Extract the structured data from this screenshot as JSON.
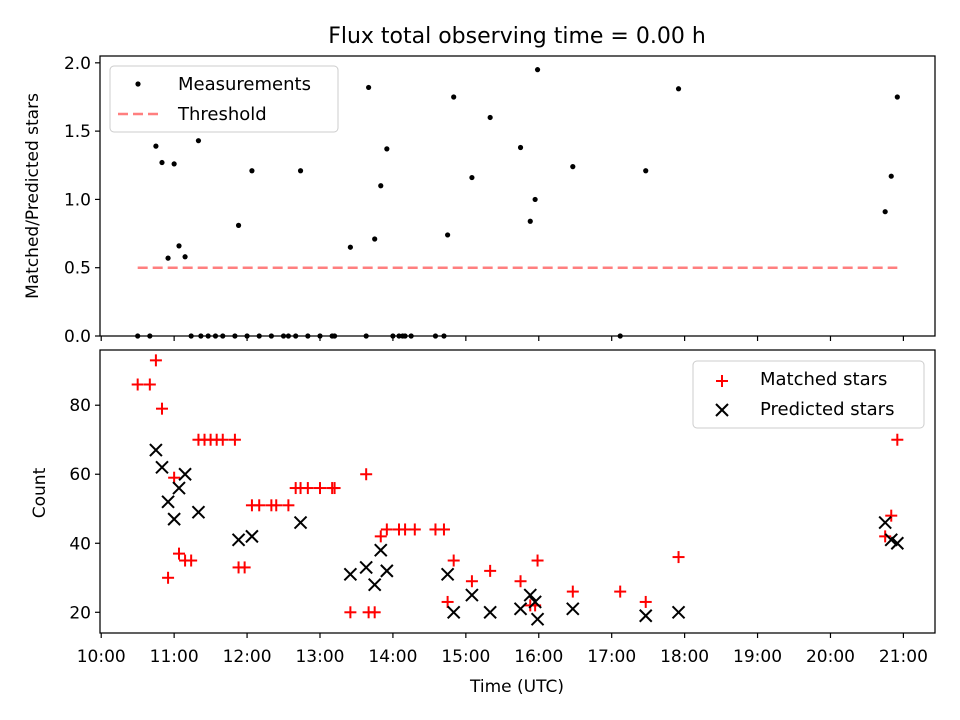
{
  "chart_data": [
    {
      "type": "scatter",
      "title": "Flux total observing time = 0.00 h",
      "xlabel": "",
      "ylabel": "Matched/Predicted stars",
      "xlim": [
        "09:59",
        "21:26"
      ],
      "ylim": [
        0,
        2.05
      ],
      "yticks": [
        "0.0",
        "0.5",
        "1.0",
        "1.5",
        "2.0"
      ],
      "legend": {
        "position": "top-left",
        "entries": [
          {
            "label": "Measurements",
            "marker": "dot",
            "color": "#000000"
          },
          {
            "label": "Threshold",
            "marker": "dashed-line",
            "color": "#ff7f7f"
          }
        ]
      },
      "series": [
        {
          "name": "Measurements",
          "points": [
            [
              "10:30",
              0
            ],
            [
              "10:40",
              0
            ],
            [
              "10:45",
              1.39
            ],
            [
              "10:50",
              1.27
            ],
            [
              "10:55",
              0.57
            ],
            [
              "11:00",
              1.26
            ],
            [
              "11:04",
              0.66
            ],
            [
              "11:09",
              0.58
            ],
            [
              "11:14",
              0
            ],
            [
              "11:20",
              1.43
            ],
            [
              "11:22",
              0
            ],
            [
              "11:28",
              0
            ],
            [
              "11:34",
              0
            ],
            [
              "11:40",
              0
            ],
            [
              "11:50",
              0
            ],
            [
              "11:53",
              0.81
            ],
            [
              "12:00",
              0
            ],
            [
              "12:04",
              1.21
            ],
            [
              "12:10",
              0
            ],
            [
              "12:20",
              0
            ],
            [
              "12:30",
              0
            ],
            [
              "12:34",
              0
            ],
            [
              "12:40",
              0
            ],
            [
              "12:44",
              1.21
            ],
            [
              "12:50",
              0
            ],
            [
              "13:00",
              0
            ],
            [
              "13:10",
              0
            ],
            [
              "13:12",
              0
            ],
            [
              "13:25",
              0.65
            ],
            [
              "13:38",
              0
            ],
            [
              "13:40",
              1.82
            ],
            [
              "13:45",
              0.71
            ],
            [
              "13:50",
              1.1
            ],
            [
              "13:55",
              1.37
            ],
            [
              "14:00",
              0
            ],
            [
              "14:05",
              0
            ],
            [
              "14:08",
              0
            ],
            [
              "14:10",
              0
            ],
            [
              "14:15",
              0
            ],
            [
              "14:35",
              0
            ],
            [
              "14:42",
              0
            ],
            [
              "14:45",
              0.74
            ],
            [
              "14:50",
              1.75
            ],
            [
              "15:05",
              1.16
            ],
            [
              "15:20",
              1.6
            ],
            [
              "15:45",
              1.38
            ],
            [
              "15:53",
              0.84
            ],
            [
              "15:57",
              1.0
            ],
            [
              "15:59",
              1.95
            ],
            [
              "16:28",
              1.24
            ],
            [
              "17:07",
              0
            ],
            [
              "17:28",
              1.21
            ],
            [
              "17:55",
              1.81
            ],
            [
              "20:45",
              0.91
            ],
            [
              "20:50",
              1.17
            ],
            [
              "20:55",
              1.75
            ]
          ]
        }
      ],
      "threshold": {
        "name": "Threshold",
        "y": 0.5,
        "x_start": "10:30",
        "x_end": "20:55"
      }
    },
    {
      "type": "scatter",
      "title": "",
      "xlabel": "Time (UTC)",
      "ylabel": "Count",
      "xlim": [
        "09:59",
        "21:26"
      ],
      "ylim": [
        14,
        96
      ],
      "yticks": [
        "20",
        "40",
        "60",
        "80"
      ],
      "xticks": [
        "10:00",
        "11:00",
        "12:00",
        "13:00",
        "14:00",
        "15:00",
        "16:00",
        "17:00",
        "18:00",
        "19:00",
        "20:00",
        "21:00"
      ],
      "legend": {
        "position": "top-right",
        "entries": [
          {
            "label": "Matched stars",
            "marker": "plus",
            "color": "#ff0000"
          },
          {
            "label": "Predicted stars",
            "marker": "x",
            "color": "#000000"
          }
        ]
      },
      "series": [
        {
          "name": "Matched stars",
          "points": [
            [
              "10:30",
              86
            ],
            [
              "10:40",
              86
            ],
            [
              "10:45",
              93
            ],
            [
              "10:50",
              79
            ],
            [
              "10:55",
              30
            ],
            [
              "11:00",
              59
            ],
            [
              "11:04",
              37
            ],
            [
              "11:09",
              35
            ],
            [
              "11:14",
              35
            ],
            [
              "11:20",
              70
            ],
            [
              "11:25",
              70
            ],
            [
              "11:30",
              70
            ],
            [
              "11:35",
              70
            ],
            [
              "11:40",
              70
            ],
            [
              "11:50",
              70
            ],
            [
              "11:53",
              33
            ],
            [
              "11:58",
              33
            ],
            [
              "12:04",
              51
            ],
            [
              "12:10",
              51
            ],
            [
              "12:20",
              51
            ],
            [
              "12:24",
              51
            ],
            [
              "12:34",
              51
            ],
            [
              "12:40",
              56
            ],
            [
              "12:44",
              56
            ],
            [
              "12:50",
              56
            ],
            [
              "13:00",
              56
            ],
            [
              "13:10",
              56
            ],
            [
              "13:12",
              56
            ],
            [
              "13:25",
              20
            ],
            [
              "13:38",
              60
            ],
            [
              "13:40",
              20
            ],
            [
              "13:45",
              20
            ],
            [
              "13:50",
              42
            ],
            [
              "13:55",
              44
            ],
            [
              "14:05",
              44
            ],
            [
              "14:10",
              44
            ],
            [
              "14:18",
              44
            ],
            [
              "14:35",
              44
            ],
            [
              "14:42",
              44
            ],
            [
              "14:45",
              23
            ],
            [
              "14:50",
              35
            ],
            [
              "15:05",
              29
            ],
            [
              "15:20",
              32
            ],
            [
              "15:45",
              29
            ],
            [
              "15:53",
              22
            ],
            [
              "15:57",
              22
            ],
            [
              "15:59",
              35
            ],
            [
              "16:28",
              26
            ],
            [
              "17:07",
              26
            ],
            [
              "17:28",
              23
            ],
            [
              "17:55",
              36
            ],
            [
              "20:45",
              42
            ],
            [
              "20:50",
              48
            ],
            [
              "20:55",
              70
            ]
          ]
        },
        {
          "name": "Predicted stars",
          "points": [
            [
              "10:45",
              67
            ],
            [
              "10:50",
              62
            ],
            [
              "10:55",
              52
            ],
            [
              "11:00",
              47
            ],
            [
              "11:04",
              56
            ],
            [
              "11:09",
              60
            ],
            [
              "11:20",
              49
            ],
            [
              "11:53",
              41
            ],
            [
              "12:04",
              42
            ],
            [
              "12:44",
              46
            ],
            [
              "13:25",
              31
            ],
            [
              "13:38",
              33
            ],
            [
              "13:45",
              28
            ],
            [
              "13:50",
              38
            ],
            [
              "13:55",
              32
            ],
            [
              "14:45",
              31
            ],
            [
              "14:50",
              20
            ],
            [
              "15:05",
              25
            ],
            [
              "15:20",
              20
            ],
            [
              "15:45",
              21
            ],
            [
              "15:53",
              25
            ],
            [
              "15:57",
              23
            ],
            [
              "15:59",
              18
            ],
            [
              "16:28",
              21
            ],
            [
              "17:28",
              19
            ],
            [
              "17:55",
              20
            ],
            [
              "20:45",
              46
            ],
            [
              "20:50",
              41
            ],
            [
              "20:55",
              40
            ]
          ]
        }
      ]
    }
  ]
}
